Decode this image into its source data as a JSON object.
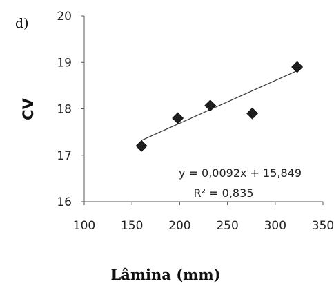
{
  "chart_data": {
    "type": "scatter",
    "panel_label": "d)",
    "title": "",
    "xlabel": "Lâmina (mm)",
    "ylabel": "CV",
    "xlim": [
      100,
      350
    ],
    "ylim": [
      16,
      20
    ],
    "xticks": [
      "100",
      "150",
      "200",
      "250",
      "300",
      "350"
    ],
    "yticks": [
      "16",
      "17",
      "18",
      "19",
      "20"
    ],
    "points": [
      {
        "x": 160,
        "y": 17.2
      },
      {
        "x": 198,
        "y": 17.8
      },
      {
        "x": 232,
        "y": 18.07
      },
      {
        "x": 276,
        "y": 17.9
      },
      {
        "x": 323,
        "y": 18.9
      }
    ],
    "trendline": {
      "slope": 0.0092,
      "intercept": 15.849,
      "x_range": [
        160,
        323
      ],
      "equation": "y = 0,0092x + 15,849",
      "r2": "R² = 0,835"
    },
    "grid": false,
    "marker": "diamond",
    "colors": {
      "marker": "#1e1e1e",
      "line": "#333333",
      "axis": "#555555"
    }
  }
}
